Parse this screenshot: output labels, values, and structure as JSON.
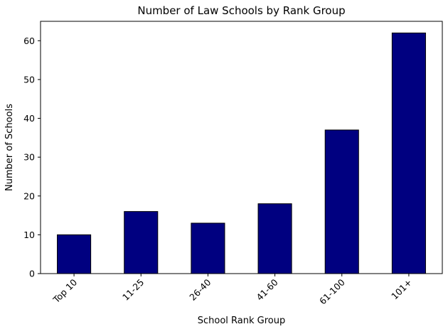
{
  "chart_data": {
    "type": "bar",
    "title": "Number of Law Schools by Rank Group",
    "xlabel": "School Rank Group",
    "ylabel": "Number of Schools",
    "categories": [
      "Top 10",
      "11-25",
      "26-40",
      "41-60",
      "61-100",
      "101+"
    ],
    "values": [
      10,
      16,
      13,
      18,
      37,
      62
    ],
    "yticks": [
      0,
      10,
      20,
      30,
      40,
      50,
      60
    ],
    "ylim": [
      0,
      65
    ],
    "x_tick_rotation": 45,
    "grid": false,
    "legend": null,
    "bar_color": "#000080",
    "bar_edge_color": "#000000",
    "bar_width_fraction": 0.5,
    "frame_color": "#000000",
    "background_color": "#ffffff"
  }
}
